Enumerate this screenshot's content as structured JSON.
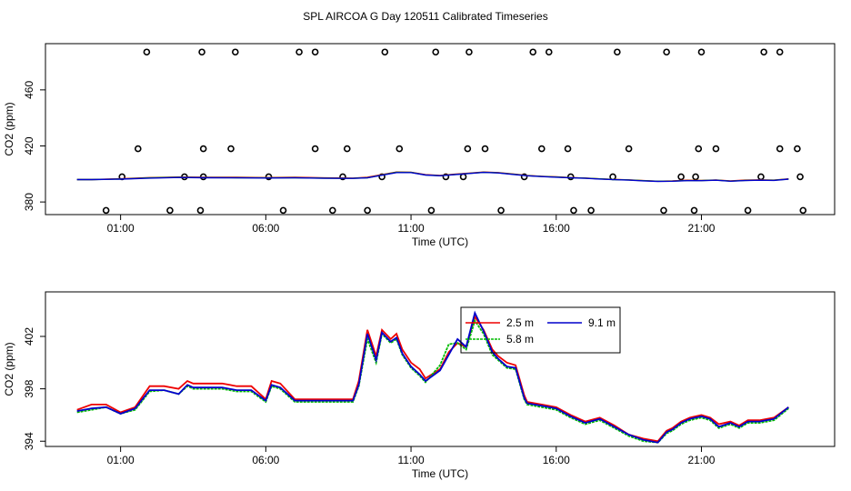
{
  "title": "SPL AIRCOA G  Day 120511  Calibrated Timeseries",
  "colors": {
    "s25": "#ee0000",
    "s58": "#00bb00",
    "s91": "#0000cc",
    "axis": "#000000"
  },
  "chart_data": [
    {
      "type": "scatter",
      "xlabel": "Time (UTC)",
      "ylabel": "CO2 (ppm)",
      "xlim": [
        -0.5,
        24.5
      ],
      "ylim": [
        371,
        493
      ],
      "xticks": [
        1,
        6,
        11,
        16,
        21
      ],
      "xtick_labels": [
        "01:00",
        "06:00",
        "11:00",
        "16:00",
        "21:00"
      ],
      "yticks": [
        380,
        420,
        460
      ],
      "ytick_labels": [
        "380",
        "420",
        "460"
      ],
      "points": [
        [
          0.5,
          374
        ],
        [
          1.05,
          398
        ],
        [
          1.6,
          418
        ],
        [
          2.7,
          374
        ],
        [
          3.2,
          398
        ],
        [
          3.75,
          374
        ],
        [
          3.85,
          398
        ],
        [
          3.85,
          418
        ],
        [
          4.8,
          418
        ],
        [
          6.1,
          398
        ],
        [
          6.6,
          374
        ],
        [
          7.7,
          418
        ],
        [
          8.3,
          374
        ],
        [
          8.65,
          398
        ],
        [
          8.8,
          418
        ],
        [
          9.5,
          374
        ],
        [
          10.0,
          398
        ],
        [
          10.6,
          418
        ],
        [
          11.7,
          374
        ],
        [
          12.2,
          398
        ],
        [
          12.8,
          398
        ],
        [
          12.95,
          418
        ],
        [
          13.55,
          418
        ],
        [
          14.1,
          374
        ],
        [
          14.9,
          398
        ],
        [
          15.5,
          418
        ],
        [
          16.4,
          418
        ],
        [
          16.5,
          398
        ],
        [
          16.6,
          374
        ],
        [
          17.2,
          374
        ],
        [
          17.95,
          398
        ],
        [
          18.5,
          418
        ],
        [
          19.7,
          374
        ],
        [
          20.3,
          398
        ],
        [
          20.75,
          374
        ],
        [
          20.8,
          398
        ],
        [
          20.9,
          418
        ],
        [
          21.5,
          418
        ],
        [
          22.6,
          374
        ],
        [
          23.05,
          398
        ],
        [
          23.7,
          418
        ],
        [
          24.3,
          418
        ],
        [
          24.4,
          398
        ],
        [
          24.5,
          374
        ],
        [
          1.9,
          487
        ],
        [
          3.8,
          487
        ],
        [
          4.95,
          487
        ],
        [
          7.15,
          487
        ],
        [
          7.7,
          487
        ],
        [
          10.1,
          487
        ],
        [
          11.85,
          487
        ],
        [
          13.0,
          487
        ],
        [
          15.2,
          487
        ],
        [
          15.75,
          487
        ],
        [
          18.1,
          487
        ],
        [
          19.8,
          487
        ],
        [
          21.0,
          487
        ],
        [
          23.15,
          487
        ],
        [
          23.7,
          487
        ]
      ],
      "series": [
        {
          "name": "2.5 m",
          "x": [
            -0.5,
            0,
            1,
            2,
            3,
            4,
            5,
            6,
            7,
            8,
            9,
            9.5,
            10,
            10.5,
            11,
            11.5,
            12,
            12.5,
            13,
            13.5,
            14,
            14.5,
            15,
            15.5,
            16,
            16.5,
            17,
            17.5,
            18,
            18.5,
            19,
            19.5,
            20,
            20.5,
            21,
            21.5,
            22,
            22.5,
            23,
            23.5,
            24
          ],
          "y": [
            396,
            396,
            396.6,
            397.4,
            397.8,
            397.6,
            397.6,
            397.4,
            397.6,
            397.2,
            397,
            397.6,
            399.5,
            401.4,
            401.2,
            399.5,
            399,
            399.8,
            400.6,
            401.4,
            401,
            400,
            398.9,
            398.3,
            397.9,
            397.4,
            397.1,
            396.5,
            396.1,
            395.8,
            395.3,
            394.8,
            395,
            395.5,
            395.4,
            395.7,
            395,
            395.6,
            395.8,
            395.6,
            396.5
          ]
        },
        {
          "name": "5.8 m",
          "x": [
            -0.5,
            0,
            1,
            2,
            3,
            4,
            5,
            6,
            7,
            8,
            9,
            9.5,
            10,
            10.5,
            11,
            11.5,
            12,
            12.5,
            13,
            13.5,
            14,
            14.5,
            15,
            15.5,
            16,
            16.5,
            17,
            17.5,
            18,
            18.5,
            19,
            19.5,
            20,
            20.5,
            21,
            21.5,
            22,
            22.5,
            23,
            23.5,
            24
          ],
          "y": [
            396,
            396,
            396.4,
            397.2,
            397.6,
            397.4,
            397.3,
            397.2,
            397.3,
            397,
            396.9,
            397.3,
            399.3,
            401.2,
            401.1,
            399.3,
            398.8,
            399.6,
            400.4,
            401.2,
            400.8,
            399.8,
            398.8,
            398.2,
            397.8,
            397.3,
            397,
            396.5,
            396,
            395.7,
            395.2,
            394.8,
            394.9,
            395.3,
            395.3,
            395.6,
            394.9,
            395.4,
            395.6,
            395.5,
            396.4
          ]
        },
        {
          "name": "9.1 m",
          "x": [
            -0.5,
            0,
            1,
            2,
            3,
            4,
            5,
            6,
            7,
            8,
            9,
            9.5,
            10,
            10.5,
            11,
            11.5,
            12,
            12.5,
            13,
            13.5,
            14,
            14.5,
            15,
            15.5,
            16,
            16.5,
            17,
            17.5,
            18,
            18.5,
            19,
            19.5,
            20,
            20.5,
            21,
            21.5,
            22,
            22.5,
            23,
            23.5,
            24
          ],
          "y": [
            396,
            396,
            396.3,
            397,
            397.5,
            397.3,
            397.2,
            397.1,
            397.2,
            396.9,
            396.8,
            397.2,
            399.1,
            401,
            401,
            399.2,
            398.7,
            399.5,
            400.3,
            401.1,
            400.7,
            399.7,
            398.7,
            398.1,
            397.7,
            397.2,
            396.9,
            396.4,
            395.9,
            395.6,
            395.1,
            394.7,
            394.8,
            395.2,
            395.2,
            395.5,
            394.8,
            395.3,
            395.5,
            395.4,
            396.3
          ]
        }
      ]
    },
    {
      "type": "line",
      "xlabel": "Time (UTC)",
      "ylabel": "CO2 (ppm)",
      "xlim": [
        -0.5,
        24.5
      ],
      "ylim": [
        393.6,
        405.4
      ],
      "xticks": [
        1,
        6,
        11,
        16,
        21
      ],
      "xtick_labels": [
        "01:00",
        "06:00",
        "11:00",
        "16:00",
        "21:00"
      ],
      "yticks": [
        394,
        398,
        402
      ],
      "ytick_labels": [
        "394",
        "398",
        "402"
      ],
      "legend": {
        "entries": [
          "2.5 m",
          "5.8 m",
          "9.1 m"
        ],
        "position": "top-center"
      },
      "series": [
        {
          "name": "2.5 m",
          "color_key": "s25",
          "x": [
            -0.5,
            0,
            0.5,
            1,
            1.5,
            2,
            2.5,
            3,
            3.3,
            3.5,
            4,
            4.5,
            5,
            5.5,
            6,
            6.2,
            6.5,
            7,
            7.5,
            8,
            8.5,
            9,
            9.2,
            9.5,
            9.8,
            10,
            10.3,
            10.5,
            10.7,
            11,
            11.3,
            11.5,
            12,
            12.3,
            12.6,
            12.9,
            13.2,
            13.5,
            13.8,
            14,
            14.3,
            14.6,
            14.9,
            15,
            15.5,
            16,
            16.5,
            17,
            17.5,
            18,
            18.5,
            19,
            19.5,
            19.8,
            20,
            20.3,
            20.6,
            21,
            21.3,
            21.6,
            22,
            22.3,
            22.6,
            23,
            23.5,
            24
          ],
          "y": [
            396.4,
            396.8,
            396.8,
            396.2,
            396.6,
            398.2,
            398.2,
            398,
            398.6,
            398.4,
            398.4,
            398.4,
            398.2,
            398.2,
            397.2,
            398.6,
            398.4,
            397.2,
            397.2,
            397.2,
            397.2,
            397.2,
            398.6,
            402.5,
            400.5,
            402.5,
            401.8,
            402.2,
            401,
            400,
            399.5,
            398.8,
            399.5,
            400.8,
            401.5,
            401.2,
            403.5,
            402.5,
            401,
            400.5,
            400,
            399.8,
            397.5,
            397,
            396.8,
            396.6,
            396,
            395.5,
            395.8,
            395.2,
            394.5,
            394.2,
            394,
            394.8,
            395,
            395.5,
            395.8,
            396,
            395.8,
            395.3,
            395.5,
            395.2,
            395.6,
            395.6,
            395.8,
            396.6
          ]
        },
        {
          "name": "5.8 m",
          "color_key": "s58",
          "x": [
            -0.5,
            0,
            0.5,
            1,
            1.5,
            2,
            2.5,
            3,
            3.3,
            3.5,
            4,
            4.5,
            5,
            5.5,
            6,
            6.2,
            6.5,
            7,
            7.5,
            8,
            8.5,
            9,
            9.2,
            9.5,
            9.8,
            10,
            10.3,
            10.5,
            10.7,
            11,
            11.3,
            11.5,
            12,
            12.3,
            12.6,
            12.9,
            13.2,
            13.5,
            13.8,
            14,
            14.3,
            14.6,
            14.9,
            15,
            15.5,
            16,
            16.5,
            17,
            17.5,
            18,
            18.5,
            19,
            19.5,
            19.8,
            20,
            20.3,
            20.6,
            21,
            21.3,
            21.6,
            22,
            22.3,
            22.6,
            23,
            23.5,
            24
          ],
          "y": [
            396.2,
            396.4,
            396.6,
            396.1,
            396.4,
            397.8,
            397.9,
            397.6,
            398.2,
            398,
            398,
            398,
            397.8,
            397.8,
            397,
            398.2,
            398,
            397,
            397,
            397,
            397,
            397,
            398.2,
            401.8,
            400,
            402.2,
            401.5,
            401.8,
            400.6,
            399.6,
            399,
            398.5,
            399.8,
            401.4,
            401.5,
            401,
            403.2,
            402.2,
            400.6,
            400.2,
            399.6,
            399.5,
            397.2,
            396.8,
            396.6,
            396.4,
            395.8,
            395.3,
            395.6,
            395,
            394.4,
            394,
            393.9,
            394.6,
            394.8,
            395.3,
            395.6,
            395.8,
            395.6,
            395,
            395.3,
            395,
            395.4,
            395.4,
            395.6,
            396.5
          ]
        },
        {
          "name": "9.1 m",
          "color_key": "s91",
          "x": [
            -0.5,
            0,
            0.5,
            1,
            1.5,
            2,
            2.5,
            3,
            3.3,
            3.5,
            4,
            4.5,
            5,
            5.5,
            6,
            6.2,
            6.5,
            7,
            7.5,
            8,
            8.5,
            9,
            9.2,
            9.5,
            9.8,
            10,
            10.3,
            10.5,
            10.7,
            11,
            11.3,
            11.5,
            12,
            12.3,
            12.6,
            12.9,
            13.2,
            13.5,
            13.8,
            14,
            14.3,
            14.6,
            14.9,
            15,
            15.5,
            16,
            16.5,
            17,
            17.5,
            18,
            18.5,
            19,
            19.5,
            19.8,
            20,
            20.3,
            20.6,
            21,
            21.3,
            21.6,
            22,
            22.3,
            22.6,
            23,
            23.5,
            24
          ],
          "y": [
            396.3,
            396.5,
            396.6,
            396.1,
            396.5,
            397.9,
            397.9,
            397.6,
            398.3,
            398.1,
            398.1,
            398.1,
            397.9,
            397.9,
            397.1,
            398.3,
            398.1,
            397.1,
            397.1,
            397.1,
            397.1,
            397.1,
            398.3,
            402.2,
            400.2,
            402.3,
            401.6,
            401.9,
            400.7,
            399.7,
            399.1,
            398.6,
            399.4,
            400.6,
            401.8,
            401.2,
            403.8,
            402.4,
            400.8,
            400.3,
            399.7,
            399.6,
            397.3,
            396.9,
            396.7,
            396.5,
            395.9,
            395.4,
            395.7,
            395.1,
            394.5,
            394.1,
            393.9,
            394.7,
            394.9,
            395.4,
            395.7,
            395.9,
            395.7,
            395.1,
            395.4,
            395.1,
            395.5,
            395.5,
            395.7,
            396.6
          ]
        }
      ]
    }
  ]
}
